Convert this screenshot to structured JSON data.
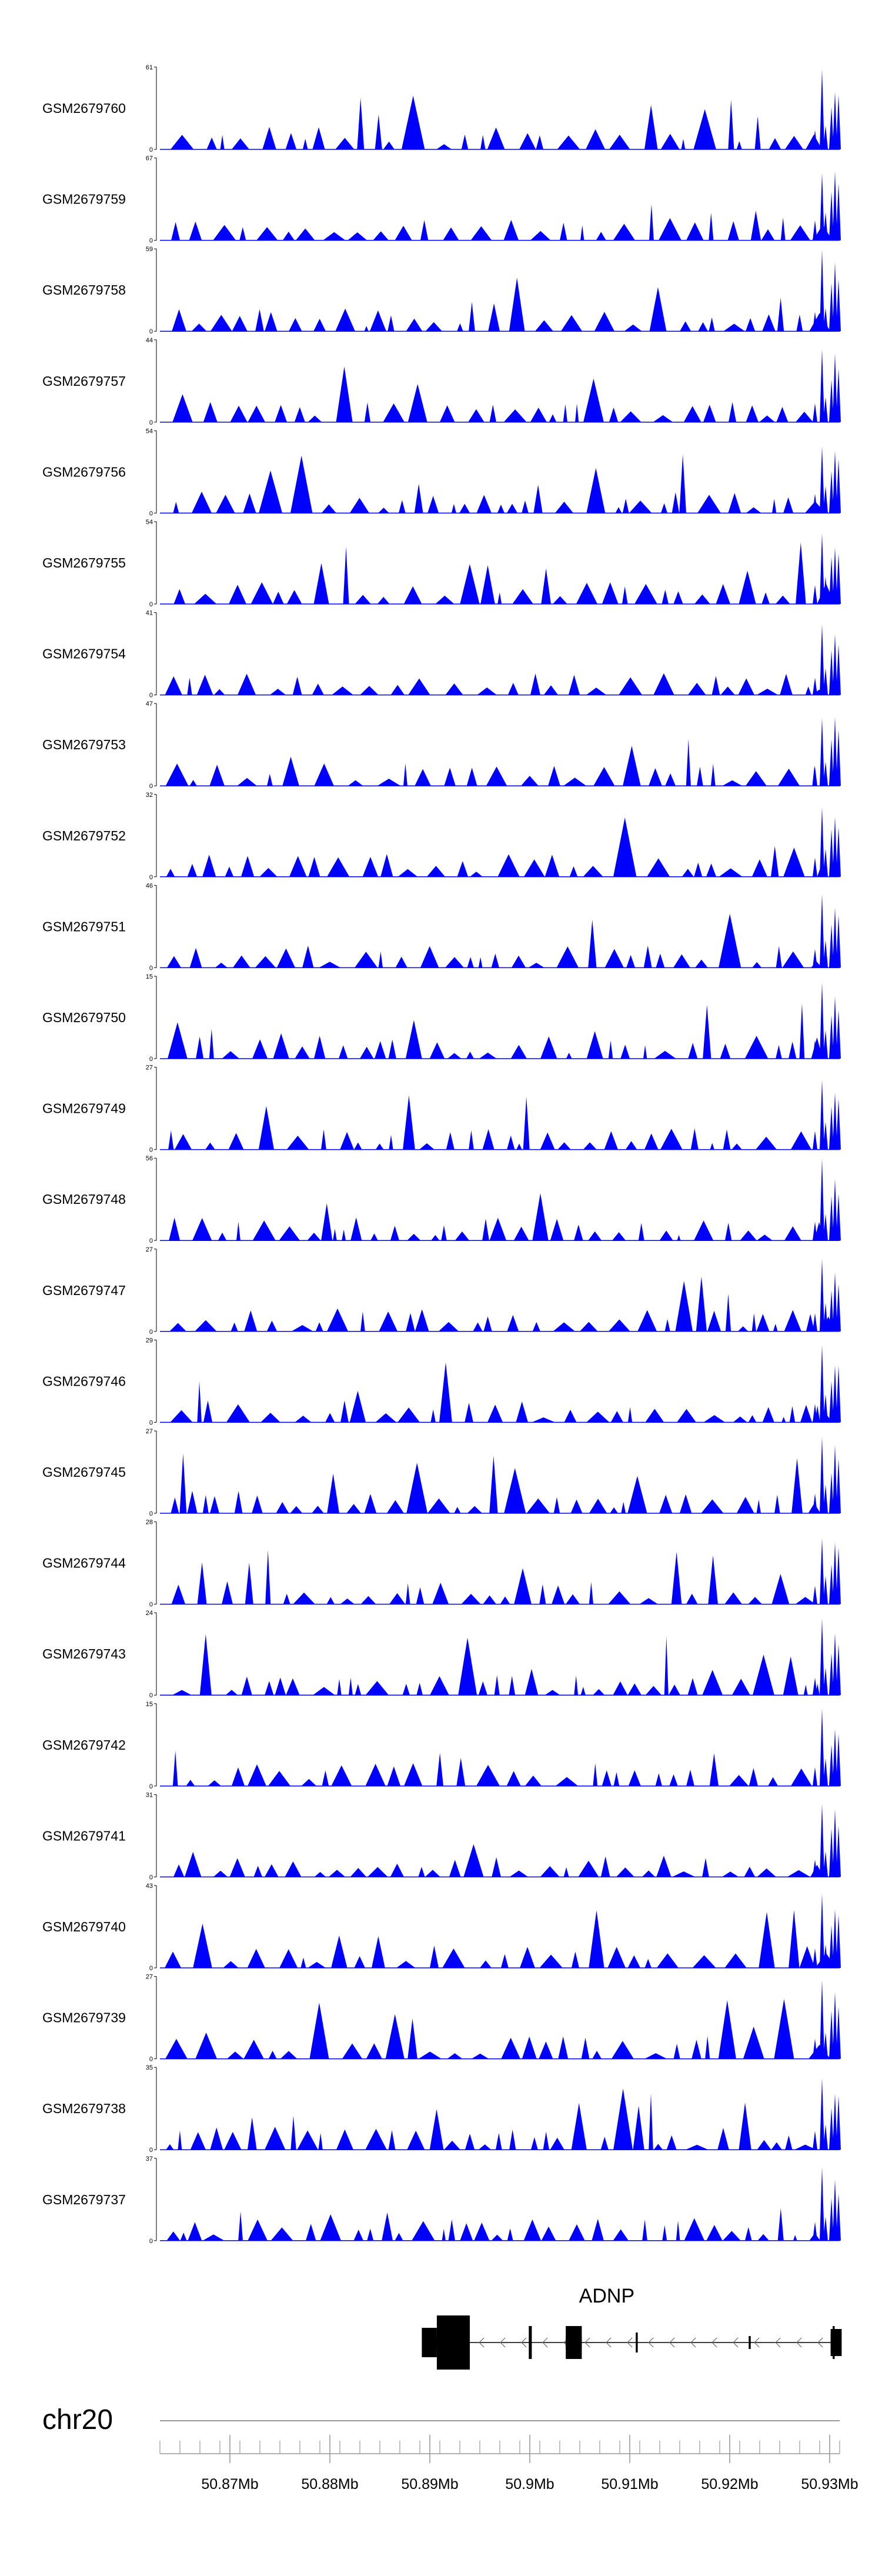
{
  "chart_data": {
    "type": "area",
    "chromosome": "chr20",
    "genome_range_mb": [
      50.863,
      50.931
    ],
    "bp_ticks": [
      50.87,
      50.88,
      50.89,
      50.9,
      50.91,
      50.92,
      50.93
    ],
    "bp_tick_labels": [
      "50.87Mb",
      "50.88Mb",
      "50.89Mb",
      "50.9Mb",
      "50.91Mb",
      "50.92Mb",
      "50.93Mb"
    ],
    "fill_color": "#0000ff",
    "tracks": [
      {
        "name": "GSM2679760",
        "max": 61,
        "min": 0
      },
      {
        "name": "GSM2679759",
        "max": 67,
        "min": 0
      },
      {
        "name": "GSM2679758",
        "max": 59,
        "min": 0
      },
      {
        "name": "GSM2679757",
        "max": 44,
        "min": 0
      },
      {
        "name": "GSM2679756",
        "max": 54,
        "min": 0
      },
      {
        "name": "GSM2679755",
        "max": 54,
        "min": 0
      },
      {
        "name": "GSM2679754",
        "max": 41,
        "min": 0
      },
      {
        "name": "GSM2679753",
        "max": 47,
        "min": 0
      },
      {
        "name": "GSM2679752",
        "max": 32,
        "min": 0
      },
      {
        "name": "GSM2679751",
        "max": 46,
        "min": 0
      },
      {
        "name": "GSM2679750",
        "max": 15,
        "min": 0
      },
      {
        "name": "GSM2679749",
        "max": 27,
        "min": 0
      },
      {
        "name": "GSM2679748",
        "max": 56,
        "min": 0
      },
      {
        "name": "GSM2679747",
        "max": 27,
        "min": 0
      },
      {
        "name": "GSM2679746",
        "max": 29,
        "min": 0
      },
      {
        "name": "GSM2679745",
        "max": 27,
        "min": 0
      },
      {
        "name": "GSM2679744",
        "max": 28,
        "min": 0
      },
      {
        "name": "GSM2679743",
        "max": 24,
        "min": 0
      },
      {
        "name": "GSM2679742",
        "max": 15,
        "min": 0
      },
      {
        "name": "GSM2679741",
        "max": 31,
        "min": 0
      },
      {
        "name": "GSM2679740",
        "max": 43,
        "min": 0
      },
      {
        "name": "GSM2679739",
        "max": 27,
        "min": 0
      },
      {
        "name": "GSM2679738",
        "max": 35,
        "min": 0
      },
      {
        "name": "GSM2679737",
        "max": 37,
        "min": 0
      }
    ],
    "gene": {
      "name": "ADNP",
      "start_mb": 50.8893,
      "end_mb": 50.9307,
      "strand": "-",
      "exons_mb": [
        [
          50.8893,
          50.8907
        ],
        [
          50.8907,
          50.8938
        ],
        [
          50.8999,
          50.9002
        ],
        [
          50.9036,
          50.9052
        ],
        [
          50.9106,
          50.9108
        ],
        [
          50.9219,
          50.9221
        ],
        [
          50.9303,
          50.9305
        ],
        [
          50.9301,
          50.9307
        ]
      ]
    }
  }
}
